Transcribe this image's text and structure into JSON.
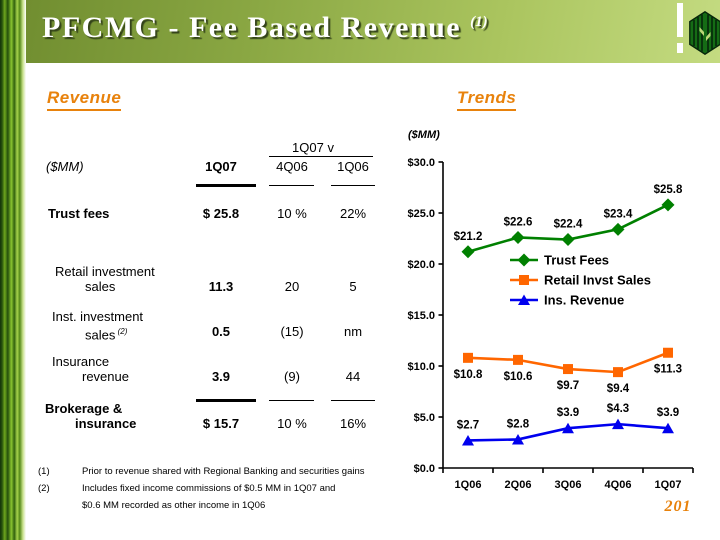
{
  "header": {
    "title": "PFCMG - Fee Based Revenue",
    "footnote_ref": "(1)"
  },
  "revenue_section": {
    "heading": "Revenue",
    "table": {
      "unit_label": "($MM)",
      "current_col": "1Q07",
      "comparison_header": "1Q07 v",
      "comparison_cols": [
        "4Q06",
        "1Q06"
      ],
      "rows": [
        {
          "label": "Trust fees",
          "label_line2": "",
          "bold": true,
          "value": "$ 25.8",
          "vs_4q06": "10 %",
          "vs_1q06": "22%"
        },
        {
          "label": "Retail investment",
          "label_line2": "sales",
          "bold": false,
          "value": "11.3",
          "vs_4q06": "20",
          "vs_1q06": "5"
        },
        {
          "label": "Inst. investment",
          "label_line2": "sales",
          "label_sup": "(2)",
          "bold": false,
          "value": "0.5",
          "vs_4q06": "(15)",
          "vs_1q06": "nm"
        },
        {
          "label": "Insurance",
          "label_line2": "revenue",
          "bold": false,
          "value": "3.9",
          "vs_4q06": "(9)",
          "vs_1q06": "44"
        }
      ],
      "total_row": {
        "label": "Brokerage &",
        "label_line2": "insurance",
        "bold": true,
        "value": "$ 15.7",
        "vs_4q06": "10 %",
        "vs_1q06": "16%"
      }
    }
  },
  "trends_section": {
    "heading": "Trends"
  },
  "chart_data": {
    "type": "line",
    "unit_label": "($MM)",
    "categories": [
      "1Q06",
      "2Q06",
      "3Q06",
      "4Q06",
      "1Q07"
    ],
    "series": [
      {
        "name": "Trust Fees",
        "values": [
          21.2,
          22.6,
          22.4,
          23.4,
          25.8
        ],
        "color": "#008000",
        "marker": "diamond",
        "label_position": "above"
      },
      {
        "name": "Retail Invst Sales",
        "values": [
          10.8,
          10.6,
          9.7,
          9.4,
          11.3
        ],
        "color": "#FF6600",
        "marker": "square",
        "label_position": "below"
      },
      {
        "name": "Ins. Revenue",
        "values": [
          2.7,
          2.8,
          3.9,
          4.3,
          3.9
        ],
        "color": "#0000EE",
        "marker": "triangle",
        "label_position": "above"
      }
    ],
    "ylim": [
      0,
      30
    ],
    "ytick_step": 5,
    "ytick_prefix": "$",
    "data_label_prefix": "$",
    "legend_position": "inside-right",
    "grid": false,
    "xlabel": "",
    "ylabel": ""
  },
  "footnotes": [
    {
      "marker": "(1)",
      "lines": [
        "Prior to revenue shared with Regional Banking and securities gains"
      ]
    },
    {
      "marker": "(2)",
      "lines": [
        "Includes fixed income commissions of $0.5 MM in 1Q07 and",
        "$0.6 MM recorded as other income in 1Q06"
      ]
    }
  ],
  "page_number": "201",
  "colors": {
    "heading_accent": "#E8820C",
    "trust_green": "#008000",
    "retail_orange": "#FF6600",
    "insurance_blue": "#0000EE",
    "title_text": "#FFFFFF"
  }
}
